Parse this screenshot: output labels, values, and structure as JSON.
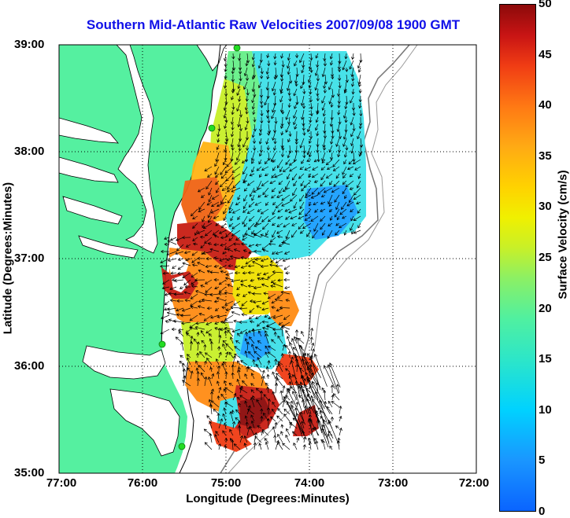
{
  "title": "Southern Mid-Atlantic Raw Velocities 2007/09/08 1900 GMT",
  "axes": {
    "xlabel": "Longitude (Degrees:Minutes)",
    "ylabel": "Latitude (Degrees:Minutes)",
    "xticks": [
      "77:00",
      "76:00",
      "75:00",
      "74:00",
      "73:00",
      "72:00"
    ],
    "yticks": [
      "39:00",
      "38:00",
      "37:00",
      "36:00",
      "35:00"
    ]
  },
  "colorbar": {
    "label": "Surface Velocity (cm/s)",
    "ticks": [
      "50",
      "45",
      "40",
      "35",
      "30",
      "25",
      "20",
      "15",
      "10",
      "5",
      "0"
    ]
  },
  "colors": {
    "land": "#55f0a0",
    "water": "#ffffff",
    "title": "#1010e8",
    "station": "#22dd22"
  }
}
